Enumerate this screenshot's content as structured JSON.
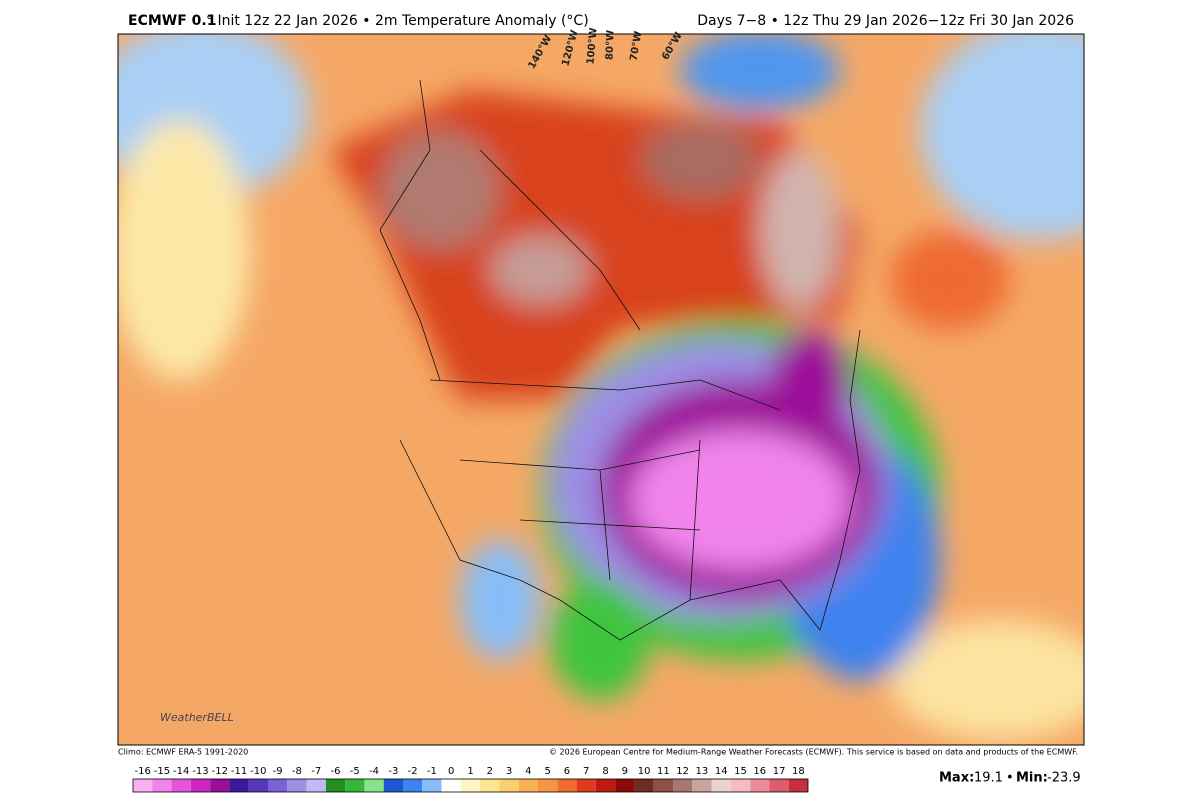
{
  "header": {
    "model": "ECMWF 0.1",
    "title_rest": "° Init 12z 22 Jan 2026 • 2m Temperature Anomaly (°C)",
    "valid": "Days 7−8 • 12z Thu 29 Jan 2026−12z Fri 30 Jan 2026"
  },
  "map": {
    "longitude_labels": [
      "140°W",
      "120°W",
      "100°W",
      "80°W",
      "70°W",
      "60°W"
    ],
    "logo": "WeatherBELL"
  },
  "footer": {
    "climo": "Climo: ECMWF ERA-5 1991-2020",
    "copyright": "© 2026 European Centre for Medium-Range Weather Forecasts (ECMWF). This service is based on data and products of the ECMWF."
  },
  "colorbar": {
    "ticks": [
      -16,
      -15,
      -14,
      -13,
      -12,
      -11,
      -10,
      -9,
      -8,
      -7,
      -6,
      -5,
      -4,
      -3,
      -2,
      -1,
      0,
      1,
      2,
      3,
      4,
      5,
      6,
      7,
      8,
      9,
      10,
      11,
      12,
      13,
      14,
      15,
      16,
      17,
      18
    ],
    "colors": [
      "#f9b0f2",
      "#f084ea",
      "#e455dc",
      "#cc25c0",
      "#9c0e9a",
      "#3a1a9a",
      "#5638c0",
      "#7a62d6",
      "#9d8ee6",
      "#c2baf2",
      "#238f23",
      "#36b836",
      "#86e486",
      "#1c58d0",
      "#3d82ee",
      "#86bdf8",
      "#ffffff",
      "#fff4c4",
      "#fde48e",
      "#fbcf6c",
      "#f9b250",
      "#f69540",
      "#f06c2e",
      "#e03a1c",
      "#c01a10",
      "#8a0a06",
      "#6e2c22",
      "#8c5048",
      "#a87870",
      "#caa49e",
      "#ead2ce",
      "#f5bcc4",
      "#ec8c9a",
      "#dc5c6c",
      "#c6303e"
    ]
  },
  "stats": {
    "max_label": "Max:",
    "max": 19.1,
    "separator": "•",
    "min_label": "Min:",
    "min": -23.9
  }
}
